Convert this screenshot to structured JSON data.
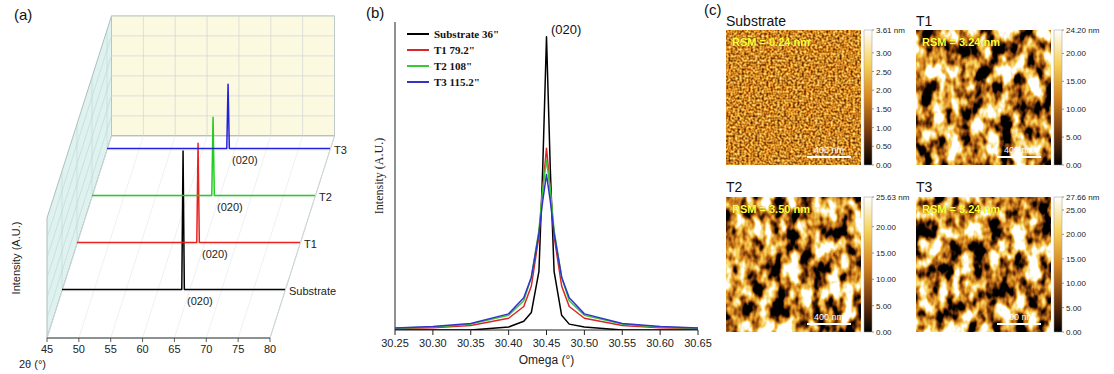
{
  "chart_data": [
    {
      "type": "line",
      "panel_label": "(a)",
      "x_label": "2θ (°)",
      "y_label": "Intensity (A.U.)",
      "xlim": [
        45,
        80
      ],
      "xticks": [
        45,
        50,
        55,
        60,
        65,
        70,
        75,
        80
      ],
      "ylim": [
        0,
        1
      ],
      "tick_labels": "x",
      "series": [
        {
          "name": "Substrate",
          "color": "#000000",
          "x": [
            45,
            63.8,
            64,
            64.2,
            80
          ],
          "values": [
            0.01,
            0.01,
            1.0,
            0.01,
            0.01
          ]
        },
        {
          "name": "T1",
          "color": "#e8231f",
          "x": [
            45,
            63.8,
            64,
            64.2,
            80
          ],
          "values": [
            0.01,
            0.01,
            0.72,
            0.01,
            0.01
          ]
        },
        {
          "name": "T2",
          "color": "#22cc22",
          "x": [
            45,
            63.8,
            64,
            64.2,
            80
          ],
          "values": [
            0.01,
            0.01,
            0.57,
            0.01,
            0.01
          ]
        },
        {
          "name": "T3",
          "color": "#2222dd",
          "x": [
            45,
            63.8,
            64,
            64.2,
            80
          ],
          "values": [
            0.01,
            0.01,
            0.47,
            0.01,
            0.01
          ]
        }
      ],
      "annotations": [
        {
          "text": "(020)",
          "x": 64,
          "series": 0
        },
        {
          "text": "(020)",
          "x": 64,
          "series": 1
        },
        {
          "text": "(020)",
          "x": 64,
          "series": 2
        },
        {
          "text": "(020)",
          "x": 64,
          "series": 3
        }
      ]
    },
    {
      "type": "line",
      "panel_label": "(b)",
      "x_label": "Omega (°)",
      "y_label": "Intensity (A.U.)",
      "xlim": [
        30.25,
        30.65
      ],
      "xticks": [
        30.25,
        {
          "value": 30.3,
          "label": "30.30"
        },
        30.35,
        {
          "value": 30.4,
          "label": "30.40"
        },
        30.45,
        {
          "value": 30.5,
          "label": "30.50"
        },
        30.55,
        {
          "value": 30.6,
          "label": "30.60"
        },
        30.65
      ],
      "ylim": [
        0,
        1.05
      ],
      "tick_labels": "x",
      "legend": "upper left",
      "x": [
        30.25,
        30.3,
        30.35,
        30.4,
        30.42,
        30.43,
        30.44,
        30.445,
        30.45,
        30.455,
        30.46,
        30.47,
        30.48,
        30.5,
        30.55,
        30.6,
        30.65
      ],
      "series": [
        {
          "name": "Substrate 36\"",
          "color": "#000000",
          "values": [
            0,
            0,
            0,
            0.01,
            0.03,
            0.06,
            0.2,
            0.55,
            1.0,
            0.55,
            0.2,
            0.05,
            0.02,
            0.01,
            0,
            0,
            0
          ]
        },
        {
          "name": "T1 79.2\"",
          "color": "#d9262b",
          "values": [
            0.005,
            0.008,
            0.015,
            0.04,
            0.08,
            0.15,
            0.32,
            0.48,
            0.62,
            0.48,
            0.32,
            0.15,
            0.08,
            0.04,
            0.015,
            0.008,
            0.005
          ]
        },
        {
          "name": "T2 108\"",
          "color": "#33cc33",
          "values": [
            0.006,
            0.01,
            0.02,
            0.05,
            0.1,
            0.18,
            0.34,
            0.48,
            0.58,
            0.48,
            0.34,
            0.18,
            0.1,
            0.05,
            0.02,
            0.01,
            0.006
          ]
        },
        {
          "name": "T3 115.2\"",
          "color": "#3333cc",
          "values": [
            0.007,
            0.012,
            0.022,
            0.055,
            0.11,
            0.18,
            0.33,
            0.44,
            0.53,
            0.44,
            0.33,
            0.18,
            0.11,
            0.055,
            0.022,
            0.012,
            0.007
          ]
        }
      ],
      "annotations": [
        {
          "text": "(020)",
          "x": 30.452,
          "y": 1.0
        }
      ]
    },
    {
      "type": "image",
      "panel_label": "(c)",
      "scale_bar": "400 nm",
      "images": [
        {
          "title": "Substrate",
          "annotation": "RSM = 0.24 nm",
          "colorbar_range": [
            0,
            3.61
          ],
          "colorbar_ticks": [
            {
              "value": 0,
              "label": "0.00"
            },
            {
              "value": 0.5,
              "label": "0.50"
            },
            {
              "value": 1,
              "label": "1.00"
            },
            {
              "value": 1.5,
              "label": "1.50"
            },
            {
              "value": 2,
              "label": "2.00"
            },
            {
              "value": 2.5,
              "label": "2.50"
            },
            {
              "value": 3,
              "label": "3.00"
            },
            {
              "value": 3.61,
              "label": "3.61 nm"
            }
          ]
        },
        {
          "title": "T1",
          "annotation": "RSM = 3.24 nm",
          "colorbar_range": [
            0,
            24.2
          ],
          "colorbar_ticks": [
            {
              "value": 0,
              "label": "0.00"
            },
            {
              "value": 5,
              "label": "5.00"
            },
            {
              "value": 10,
              "label": "10.00"
            },
            {
              "value": 15,
              "label": "15.00"
            },
            {
              "value": 20,
              "label": "20.00"
            },
            {
              "value": 24.2,
              "label": "24.20 nm"
            }
          ]
        },
        {
          "title": "T2",
          "annotation": "RSM = 3.50 nm",
          "colorbar_range": [
            0,
            25.63
          ],
          "colorbar_ticks": [
            {
              "value": 0,
              "label": "0.00"
            },
            {
              "value": 5,
              "label": "5.00"
            },
            {
              "value": 10,
              "label": "10.00"
            },
            {
              "value": 15,
              "label": "15.00"
            },
            {
              "value": 20,
              "label": "20.00"
            },
            {
              "value": 25.63,
              "label": "25.63 nm"
            }
          ]
        },
        {
          "title": "T3",
          "annotation": "RSM = 3.24 nm",
          "colorbar_range": [
            0,
            27.66
          ],
          "colorbar_ticks": [
            {
              "value": 0,
              "label": "0.00"
            },
            {
              "value": 5,
              "label": "5.00"
            },
            {
              "value": 10,
              "label": "10.00"
            },
            {
              "value": 15,
              "label": "15.00"
            },
            {
              "value": 20,
              "label": "20.00"
            },
            {
              "value": 25,
              "label": "25.00"
            },
            {
              "value": 27.66,
              "label": "27.66 nm"
            }
          ]
        }
      ]
    }
  ]
}
